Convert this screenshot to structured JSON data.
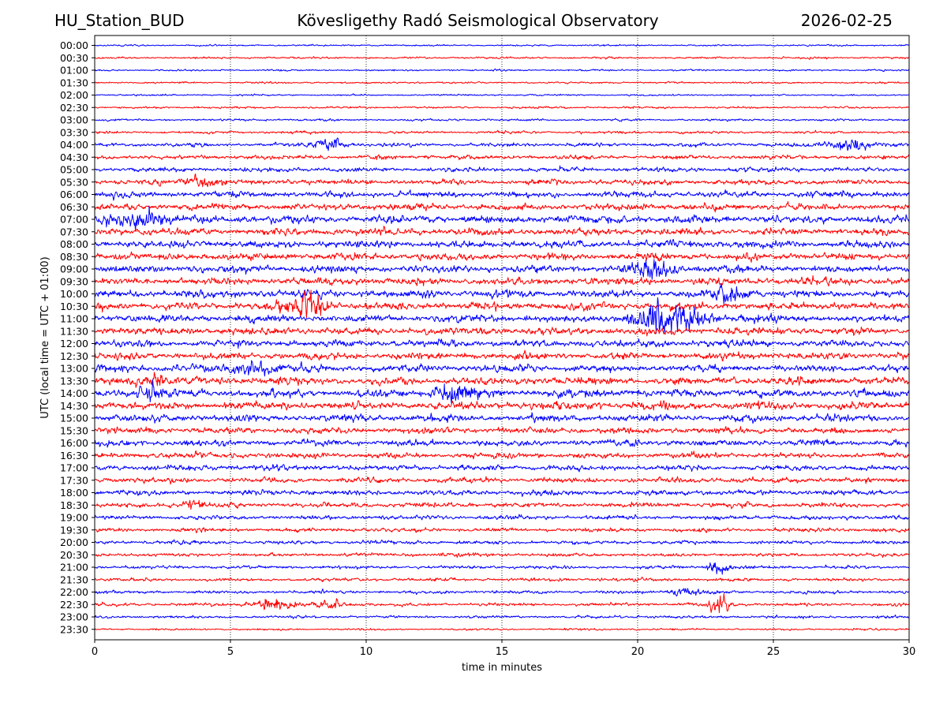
{
  "header": {
    "station": "HU_Station_BUD",
    "observatory": "Kövesligethy Radó Seismological Observatory",
    "date": "2026-02-25"
  },
  "chart_data": {
    "type": "line",
    "title": "Kövesligethy Radó Seismological Observatory",
    "xlabel": "time in minutes",
    "ylabel": "UTC (local time = UTC + 01:00)",
    "xlim": [
      0,
      30
    ],
    "x_ticks": [
      0,
      5,
      10,
      15,
      20,
      25,
      30
    ],
    "grid": "vertical dotted at 5-minute intervals",
    "row_labels": [
      "00:00",
      "00:30",
      "01:00",
      "01:30",
      "02:00",
      "02:30",
      "03:00",
      "03:30",
      "04:00",
      "04:30",
      "05:00",
      "05:30",
      "06:00",
      "06:30",
      "07:00",
      "07:30",
      "08:00",
      "08:30",
      "09:00",
      "09:30",
      "10:00",
      "10:30",
      "11:00",
      "11:30",
      "12:00",
      "12:30",
      "13:00",
      "13:30",
      "14:00",
      "14:30",
      "15:00",
      "15:30",
      "16:00",
      "16:30",
      "17:00",
      "17:30",
      "18:00",
      "18:30",
      "19:00",
      "19:30",
      "20:00",
      "20:30",
      "21:00",
      "21:30",
      "22:00",
      "22:30",
      "23:00",
      "23:30"
    ],
    "trace_colors": [
      "#0000ff",
      "#ff0000"
    ],
    "noise_amplitude": [
      0.12,
      0.15,
      0.13,
      0.14,
      0.13,
      0.15,
      0.16,
      0.2,
      0.28,
      0.32,
      0.34,
      0.4,
      0.46,
      0.5,
      0.58,
      0.52,
      0.55,
      0.55,
      0.55,
      0.55,
      0.56,
      0.56,
      0.55,
      0.55,
      0.52,
      0.52,
      0.55,
      0.55,
      0.58,
      0.58,
      0.52,
      0.48,
      0.48,
      0.42,
      0.42,
      0.4,
      0.4,
      0.36,
      0.32,
      0.3,
      0.28,
      0.26,
      0.24,
      0.24,
      0.24,
      0.24,
      0.2,
      0.14
    ],
    "events": [
      {
        "row": "04:00",
        "minute": 8.6,
        "amplitude": 1.3,
        "width_min": 0.9
      },
      {
        "row": "04:00",
        "minute": 27.8,
        "amplitude": 0.9,
        "width_min": 1.2
      },
      {
        "row": "05:30",
        "minute": 4.0,
        "amplitude": 1.0,
        "width_min": 1.0
      },
      {
        "row": "07:00",
        "minute": 1.6,
        "amplitude": 1.3,
        "width_min": 1.6
      },
      {
        "row": "09:00",
        "minute": 20.5,
        "amplitude": 1.2,
        "width_min": 1.2
      },
      {
        "row": "10:00",
        "minute": 23.4,
        "amplitude": 1.2,
        "width_min": 0.9
      },
      {
        "row": "10:30",
        "minute": 7.8,
        "amplitude": 2.4,
        "width_min": 1.1
      },
      {
        "row": "11:00",
        "minute": 20.7,
        "amplitude": 2.0,
        "width_min": 1.6
      },
      {
        "row": "11:00",
        "minute": 22.0,
        "amplitude": 1.1,
        "width_min": 1.4
      },
      {
        "row": "13:00",
        "minute": 6.0,
        "amplitude": 1.0,
        "width_min": 1.4
      },
      {
        "row": "13:30",
        "minute": 2.0,
        "amplitude": 1.0,
        "width_min": 1.0
      },
      {
        "row": "14:00",
        "minute": 13.3,
        "amplitude": 1.3,
        "width_min": 1.3
      },
      {
        "row": "14:00",
        "minute": 2.0,
        "amplitude": 1.0,
        "width_min": 0.8
      },
      {
        "row": "18:30",
        "minute": 3.7,
        "amplitude": 0.9,
        "width_min": 0.6
      },
      {
        "row": "21:00",
        "minute": 23.0,
        "amplitude": 1.2,
        "width_min": 0.6
      },
      {
        "row": "22:00",
        "minute": 21.8,
        "amplitude": 0.8,
        "width_min": 0.8
      },
      {
        "row": "22:30",
        "minute": 6.5,
        "amplitude": 1.0,
        "width_min": 1.2
      },
      {
        "row": "22:30",
        "minute": 8.7,
        "amplitude": 0.8,
        "width_min": 0.8
      },
      {
        "row": "22:30",
        "minute": 23.0,
        "amplitude": 2.0,
        "width_min": 0.6
      }
    ]
  }
}
